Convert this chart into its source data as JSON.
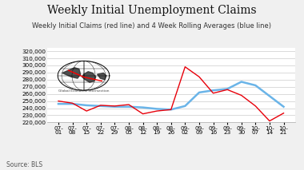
{
  "title": "Weekly Initial Unemployment Claims",
  "subtitle": "Weekly Initial Claims (red line) and 4 Week Rolling Averages (blue line)",
  "source": "Source: BLS",
  "xlabels": [
    "07-\n01",
    "07-\n08",
    "07-\n15",
    "07-\n22",
    "07-\n29",
    "08-\n05",
    "08-\n12",
    "08-\n19",
    "08-\n26",
    "09-\n02",
    "09-\n09",
    "09-\n16",
    "09-\n23",
    "09-\n30",
    "10-\n07",
    "10-\n14",
    "10-\n21"
  ],
  "red_values": [
    250000,
    247000,
    236000,
    244000,
    243000,
    245000,
    232000,
    236000,
    238000,
    298000,
    284000,
    261000,
    266000,
    258000,
    243000,
    222000,
    233000
  ],
  "blue_values": [
    246000,
    246000,
    244000,
    243000,
    242000,
    242000,
    241000,
    239000,
    238000,
    243000,
    262000,
    265000,
    267000,
    277000,
    272000,
    257000,
    242000
  ],
  "red_color": "#e8000a",
  "blue_color": "#6ab4e8",
  "ylim": [
    220000,
    325000
  ],
  "yticks": [
    220000,
    230000,
    240000,
    250000,
    260000,
    270000,
    280000,
    290000,
    300000,
    310000,
    320000
  ],
  "bg_color": "#f0f0f0",
  "plot_bg_color": "#ffffff",
  "grid_color": "#cccccc",
  "title_fontsize": 10,
  "subtitle_fontsize": 6.0,
  "tick_fontsize": 5.2,
  "source_fontsize": 5.5
}
